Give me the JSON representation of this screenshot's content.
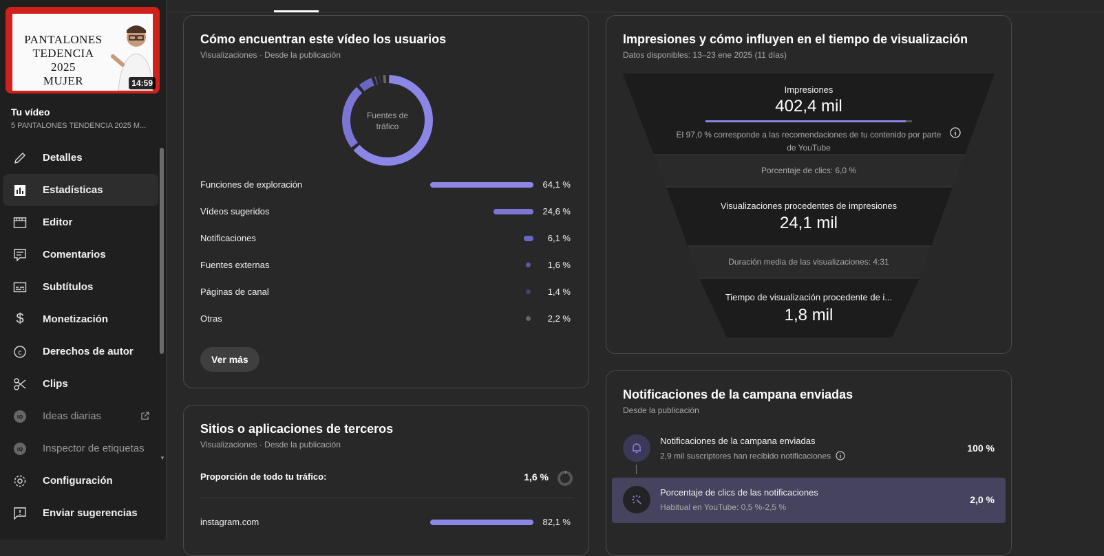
{
  "sidebar": {
    "thumbnail": {
      "text_line1": "PANTALONES",
      "text_line2": "TEDENCIA 2025",
      "text_line3": "MUJER",
      "duration": "14:59"
    },
    "your_video_label": "Tu vídeo",
    "video_title": "5 PANTALONES TENDENCIA 2025 M...",
    "items": [
      {
        "label": "Detalles",
        "icon": "pencil-icon"
      },
      {
        "label": "Estadísticas",
        "icon": "analytics-icon"
      },
      {
        "label": "Editor",
        "icon": "film-editor-icon"
      },
      {
        "label": "Comentarios",
        "icon": "comment-icon"
      },
      {
        "label": "Subtítulos",
        "icon": "subtitles-icon"
      },
      {
        "label": "Monetización",
        "icon": "dollar-icon"
      },
      {
        "label": "Derechos de autor",
        "icon": "copyright-icon"
      },
      {
        "label": "Clips",
        "icon": "scissors-icon"
      },
      {
        "label": "Ideas diarias",
        "icon": "vidiq-icon"
      },
      {
        "label": "Inspector de etiquetas",
        "icon": "vidiq-icon"
      },
      {
        "label": "Configuración",
        "icon": "gear-icon"
      },
      {
        "label": "Enviar sugerencias",
        "icon": "feedback-icon"
      }
    ]
  },
  "traffic_card": {
    "title": "Cómo encuentran este vídeo los usuarios",
    "subtitle": "Visualizaciones · Desde la publicación",
    "donut_label_1": "Fuentes de",
    "donut_label_2": "tráfico",
    "sources": [
      {
        "label": "Funciones de exploración",
        "value": 64.1,
        "pct": "64,1 %"
      },
      {
        "label": "Vídeos sugeridos",
        "value": 24.6,
        "pct": "24,6 %"
      },
      {
        "label": "Notificaciones",
        "value": 6.1,
        "pct": "6,1 %"
      },
      {
        "label": "Fuentes externas",
        "value": 1.6,
        "pct": "1,6 %"
      },
      {
        "label": "Páginas de canal",
        "value": 1.4,
        "pct": "1,4 %"
      },
      {
        "label": "Otras",
        "value": 2.2,
        "pct": "2,2 %"
      }
    ],
    "see_more": "Ver más"
  },
  "third_party_card": {
    "title": "Sitios o aplicaciones de terceros",
    "subtitle": "Visualizaciones · Desde la publicación",
    "proportion_label": "Proporción de todo tu tráfico:",
    "proportion_value": "1,6 %",
    "sites": [
      {
        "label": "instagram.com",
        "value": 82.1,
        "pct": "82,1 %"
      }
    ]
  },
  "impressions_card": {
    "title": "Impresiones y cómo influyen en el tiempo de visualización",
    "subtitle": "Datos disponibles: 13–23 ene 2025 (11 días)",
    "impressions_label": "Impresiones",
    "impressions_value": "402,4 mil",
    "impressions_bar_fraction": 0.97,
    "recommendation_text_1": "El 97,0 % corresponde a las recomendaciones de tu contenido por parte",
    "recommendation_text_2": "de YouTube",
    "ctr_text": "Porcentaje de clics: 6,0 %",
    "views_label": "Visualizaciones procedentes de impresiones",
    "views_value": "24,1 mil",
    "avg_duration_text": "Duración media de las visualizaciones: 4:31",
    "watch_time_label": "Tiempo de visualización procedente de i...",
    "watch_time_value": "1,8 mil"
  },
  "bell_card": {
    "title": "Notificaciones de la campana enviadas",
    "subtitle": "Desde la publicación",
    "rows": [
      {
        "title": "Notificaciones de la campana enviadas",
        "sub": "2,9 mil suscriptores han recibido notificaciones",
        "pct": "100 %"
      },
      {
        "title": "Porcentaje de clics de las notificaciones",
        "sub": "Habitual en YouTube: 0,5 %-2,5 %",
        "pct": "2,0 %"
      }
    ]
  },
  "colors": {
    "accent": "#8c86e6",
    "bar_dim": "#5e5aa8",
    "background": "#282828"
  }
}
